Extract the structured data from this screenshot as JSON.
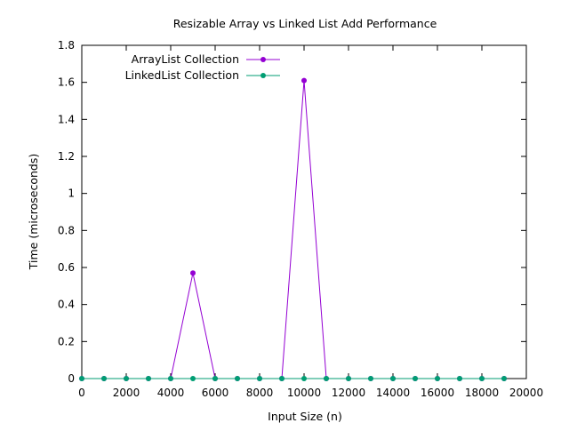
{
  "chart_data": {
    "type": "line",
    "title": "Resizable Array vs Linked List Add Performance",
    "xlabel": "Input Size (n)",
    "ylabel": "Time (microseconds)",
    "xlim": [
      0,
      20000
    ],
    "ylim": [
      0,
      1.8
    ],
    "x_ticks": [
      0,
      2000,
      4000,
      6000,
      8000,
      10000,
      12000,
      14000,
      16000,
      18000,
      20000
    ],
    "x_tick_labels": [
      "0",
      "2000",
      "4000",
      "6000",
      "8000",
      "10000",
      "12000",
      "14000",
      "16000",
      "18000",
      "20000"
    ],
    "y_ticks": [
      0,
      0.2,
      0.4,
      0.6,
      0.8,
      1,
      1.2,
      1.4,
      1.6,
      1.8
    ],
    "y_tick_labels": [
      "0",
      "0.2",
      "0.4",
      "0.6",
      "0.8",
      "1",
      "1.2",
      "1.4",
      "1.6",
      "1.8"
    ],
    "grid": false,
    "legend_position": "top-left",
    "series": [
      {
        "name": "ArrayList Collection",
        "color": "#9400d3",
        "x": [
          0,
          1000,
          2000,
          3000,
          4000,
          5000,
          6000,
          7000,
          8000,
          9000,
          10000,
          11000,
          12000,
          13000,
          14000,
          15000,
          16000,
          17000,
          18000,
          19000
        ],
        "y": [
          0,
          0,
          0,
          0,
          0,
          0.57,
          0,
          0,
          0,
          0,
          1.61,
          0,
          0,
          0,
          0,
          0,
          0,
          0,
          0,
          0
        ]
      },
      {
        "name": "LinkedList Collection",
        "color": "#009e73",
        "x": [
          0,
          1000,
          2000,
          3000,
          4000,
          5000,
          6000,
          7000,
          8000,
          9000,
          10000,
          11000,
          12000,
          13000,
          14000,
          15000,
          16000,
          17000,
          18000,
          19000
        ],
        "y": [
          0,
          0,
          0,
          0,
          0,
          0,
          0,
          0,
          0,
          0,
          0,
          0,
          0,
          0,
          0,
          0,
          0,
          0,
          0,
          0
        ]
      }
    ]
  }
}
